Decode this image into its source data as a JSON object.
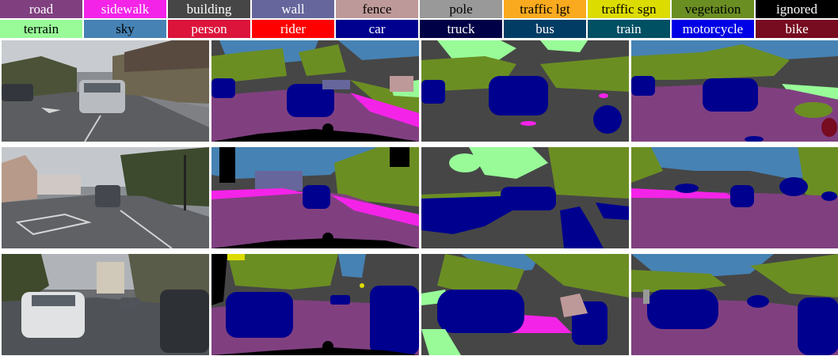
{
  "legend": {
    "row1": [
      {
        "label": "road",
        "color": "#804080",
        "text_color": "#ffffff"
      },
      {
        "label": "sidewalk",
        "color": "#f423e8",
        "text_color": "#ffffff"
      },
      {
        "label": "building",
        "color": "#464646",
        "text_color": "#ffffff"
      },
      {
        "label": "wall",
        "color": "#66669c",
        "text_color": "#ffffff"
      },
      {
        "label": "fence",
        "color": "#be9999",
        "text_color": "#000000"
      },
      {
        "label": "pole",
        "color": "#999999",
        "text_color": "#000000"
      },
      {
        "label": "traffic lgt",
        "color": "#faaa1e",
        "text_color": "#000000"
      },
      {
        "label": "traffic sgn",
        "color": "#dcdc00",
        "text_color": "#000000"
      },
      {
        "label": "vegetation",
        "color": "#6b8e23",
        "text_color": "#000000"
      },
      {
        "label": "ignored",
        "color": "#000000",
        "text_color": "#ffffff"
      }
    ],
    "row2": [
      {
        "label": "terrain",
        "color": "#98fb98",
        "text_color": "#000000"
      },
      {
        "label": "sky",
        "color": "#4682b4",
        "text_color": "#000000"
      },
      {
        "label": "person",
        "color": "#dc143c",
        "text_color": "#ffffff"
      },
      {
        "label": "rider",
        "color": "#ff0000",
        "text_color": "#ffffff"
      },
      {
        "label": "car",
        "color": "#00008e",
        "text_color": "#ffffff"
      },
      {
        "label": "truck",
        "color": "#000046",
        "text_color": "#ffffff"
      },
      {
        "label": "bus",
        "color": "#003c64",
        "text_color": "#ffffff"
      },
      {
        "label": "train",
        "color": "#005064",
        "text_color": "#ffffff"
      },
      {
        "label": "motorcycle",
        "color": "#0000e6",
        "text_color": "#ffffff"
      },
      {
        "label": "bike",
        "color": "#770b20",
        "text_color": "#ffffff"
      }
    ]
  },
  "grid": {
    "rows": 3,
    "columns": 4,
    "column_kinds": [
      "input-photo",
      "ground-truth",
      "prediction-a",
      "prediction-b"
    ]
  }
}
